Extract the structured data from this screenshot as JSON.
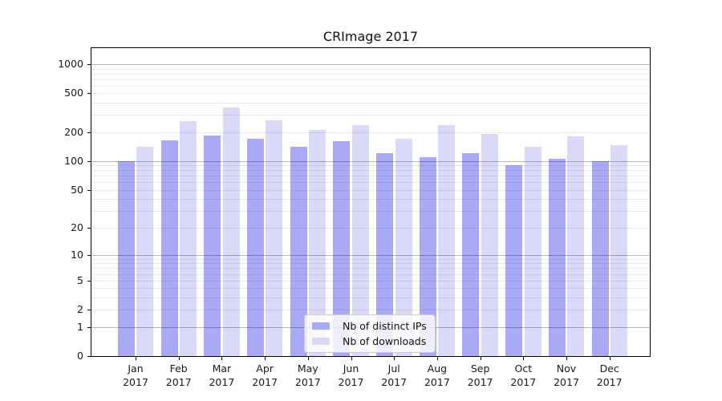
{
  "figure": {
    "title": "CRImage 2017",
    "background": "#ffffff"
  },
  "chart_data": {
    "type": "bar",
    "title": "CRImage 2017",
    "categories": [
      "Jan",
      "Feb",
      "Mar",
      "Apr",
      "May",
      "Jun",
      "Jul",
      "Aug",
      "Sep",
      "Oct",
      "Nov",
      "Dec"
    ],
    "category_year": "2017",
    "series": [
      {
        "name": "Nb of distinct IPs",
        "color": "#a9a9f6",
        "values": [
          100,
          165,
          185,
          170,
          140,
          160,
          120,
          110,
          120,
          90,
          105,
          100
        ]
      },
      {
        "name": "Nb of downloads",
        "color": "#dadaf8",
        "values": [
          140,
          260,
          360,
          265,
          210,
          235,
          170,
          235,
          190,
          140,
          180,
          145
        ]
      }
    ],
    "yscale": "log1p",
    "y_ticks": [
      0,
      1,
      2,
      5,
      10,
      20,
      50,
      100,
      200,
      500,
      1000
    ],
    "ylim": [
      0,
      1460
    ],
    "xlabel": "",
    "ylabel": "",
    "grid": true,
    "legend_position": "lower center",
    "colors": {
      "decade_gridline": "rgba(0,0,0,0.28)",
      "minor_gridline": "rgba(0,0,0,0.08)",
      "spine": "#000000",
      "text": "#1a1a1a"
    }
  }
}
